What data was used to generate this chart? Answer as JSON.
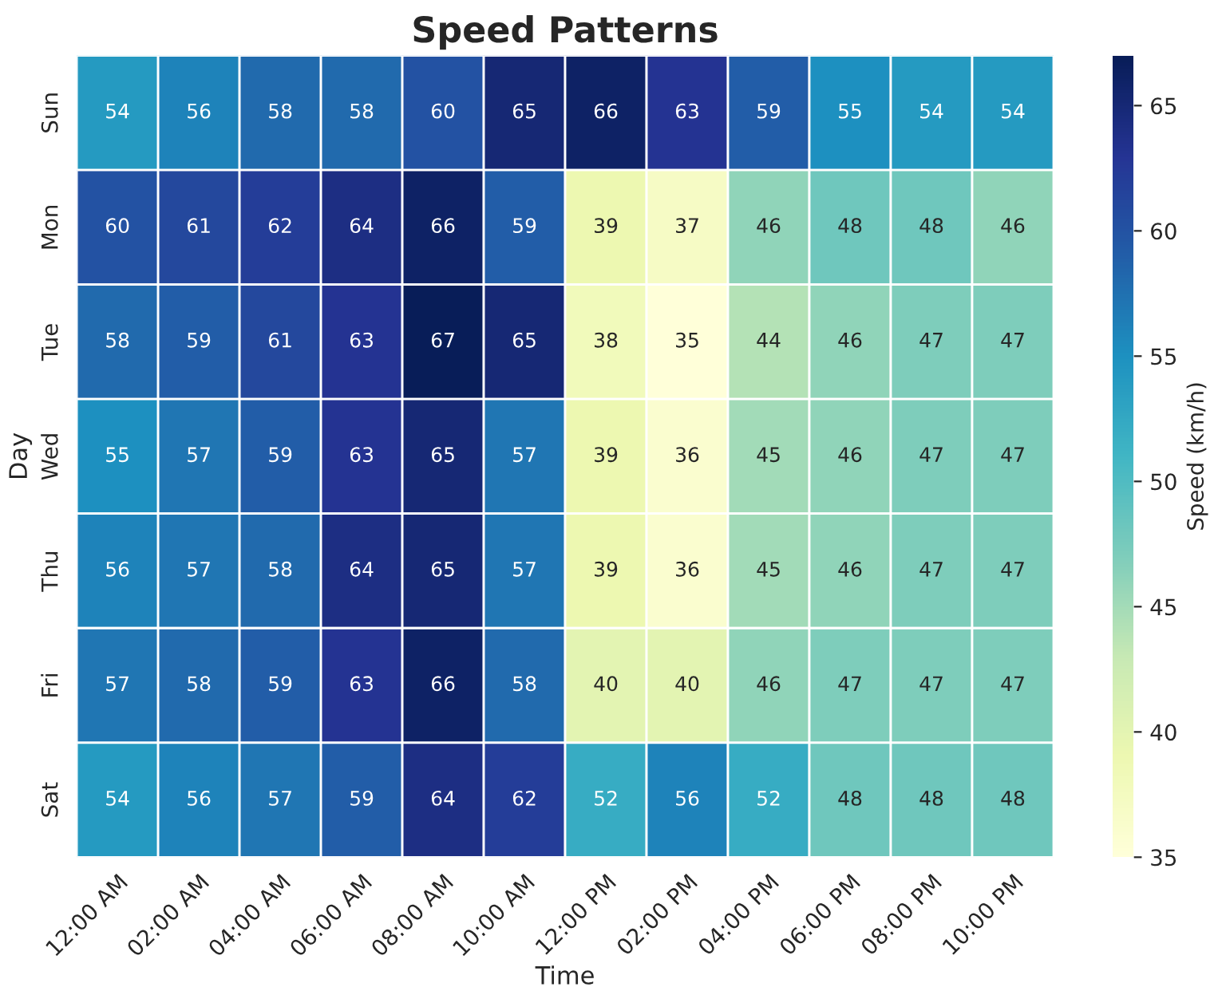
{
  "chart_data": {
    "type": "heatmap",
    "title": "Speed Patterns",
    "xlabel": "Time",
    "ylabel": "Day",
    "clabel": "Speed (km/h)",
    "categories": [
      "12:00 AM",
      "02:00 AM",
      "04:00 AM",
      "06:00 AM",
      "08:00 AM",
      "10:00 AM",
      "12:00 PM",
      "02:00 PM",
      "04:00 PM",
      "06:00 PM",
      "08:00 PM",
      "10:00 PM"
    ],
    "y_categories": [
      "Sun",
      "Mon",
      "Tue",
      "Wed",
      "Thu",
      "Fri",
      "Sat"
    ],
    "cells": [
      [
        54,
        56,
        58,
        58,
        60,
        65,
        66,
        63,
        59,
        55,
        54,
        54
      ],
      [
        60,
        61,
        62,
        64,
        66,
        59,
        39,
        37,
        46,
        48,
        48,
        46
      ],
      [
        58,
        59,
        61,
        63,
        67,
        65,
        38,
        35,
        44,
        46,
        47,
        47
      ],
      [
        55,
        57,
        59,
        63,
        65,
        57,
        39,
        36,
        45,
        46,
        47,
        47
      ],
      [
        56,
        57,
        58,
        64,
        65,
        57,
        39,
        36,
        45,
        46,
        47,
        47
      ],
      [
        57,
        58,
        59,
        63,
        66,
        58,
        40,
        40,
        46,
        47,
        47,
        47
      ],
      [
        54,
        56,
        57,
        59,
        64,
        62,
        52,
        56,
        52,
        48,
        48,
        48
      ]
    ],
    "clim": [
      35,
      67
    ],
    "cticks": [
      35,
      40,
      45,
      50,
      55,
      60,
      65
    ],
    "data_labels": true
  }
}
